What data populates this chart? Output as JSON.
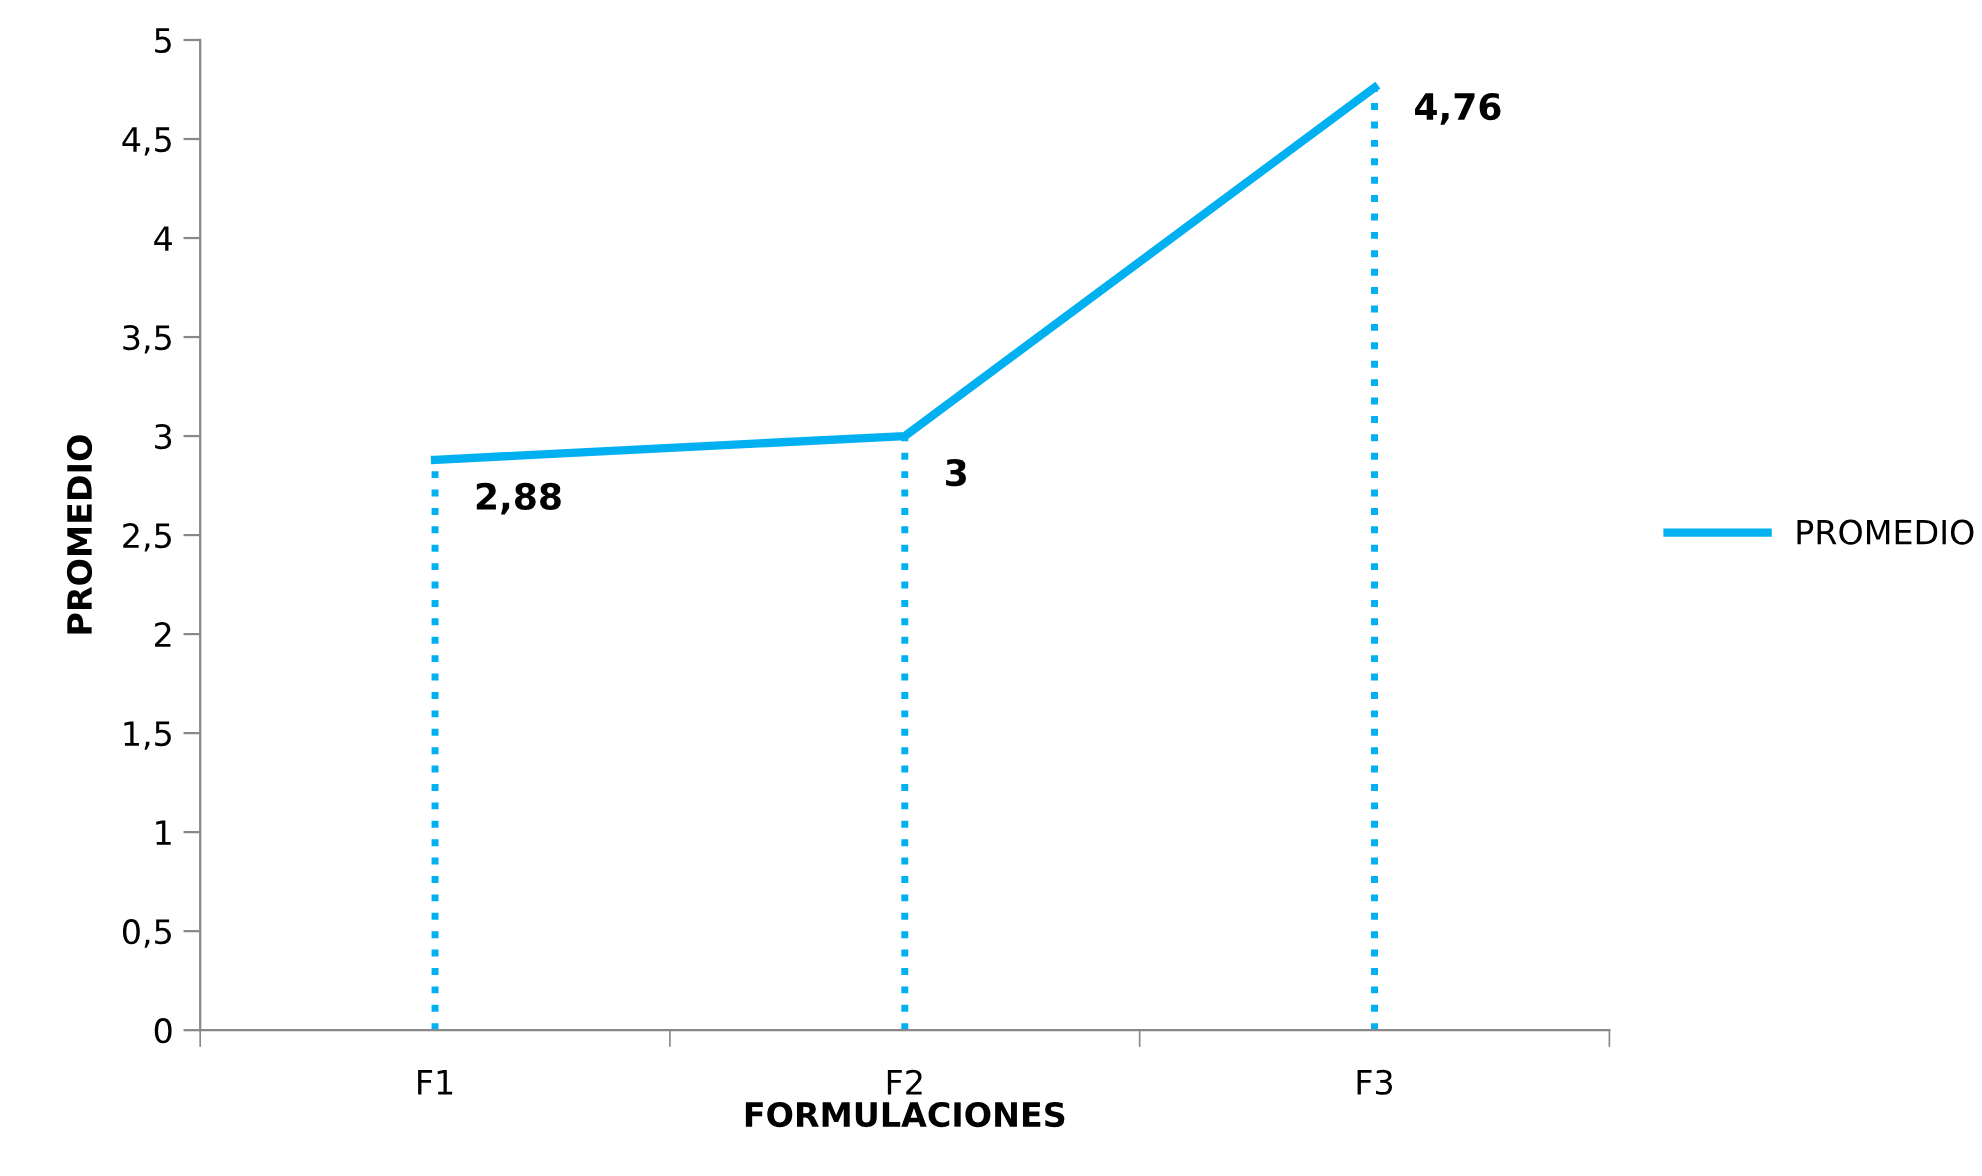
{
  "chart_data": {
    "type": "line",
    "xlabel": "FORMULACIONES",
    "ylabel": "PROMEDIO",
    "categories": [
      "F1",
      "F2",
      "F3"
    ],
    "series": [
      {
        "name": "PROMEDIO",
        "color": "#00b0f0",
        "values": [
          2.88,
          3,
          4.76
        ],
        "value_labels": [
          "2,88",
          "3",
          "4,76"
        ]
      }
    ],
    "ylim": [
      0,
      5
    ],
    "yticks": [
      0,
      {
        "value": 0.5,
        "label": "0,5"
      },
      1,
      {
        "value": 1.5,
        "label": "1,5"
      },
      2,
      {
        "value": 2.5,
        "label": "2,5"
      },
      3,
      {
        "value": 3.5,
        "label": "3,5"
      },
      4,
      {
        "value": 4.5,
        "label": "4,5"
      },
      5
    ],
    "ref_lines": [
      {
        "axis": "x",
        "value": "F1",
        "color": "#00b0f0",
        "line_style": "dotted"
      },
      {
        "axis": "x",
        "value": "F2",
        "color": "#00b0f0",
        "line_style": "dotted"
      },
      {
        "axis": "x",
        "value": "F3",
        "color": "#00b0f0",
        "line_style": "dotted"
      }
    ],
    "grid": false,
    "legend": "right",
    "marker": "none",
    "line_style": "solid"
  }
}
